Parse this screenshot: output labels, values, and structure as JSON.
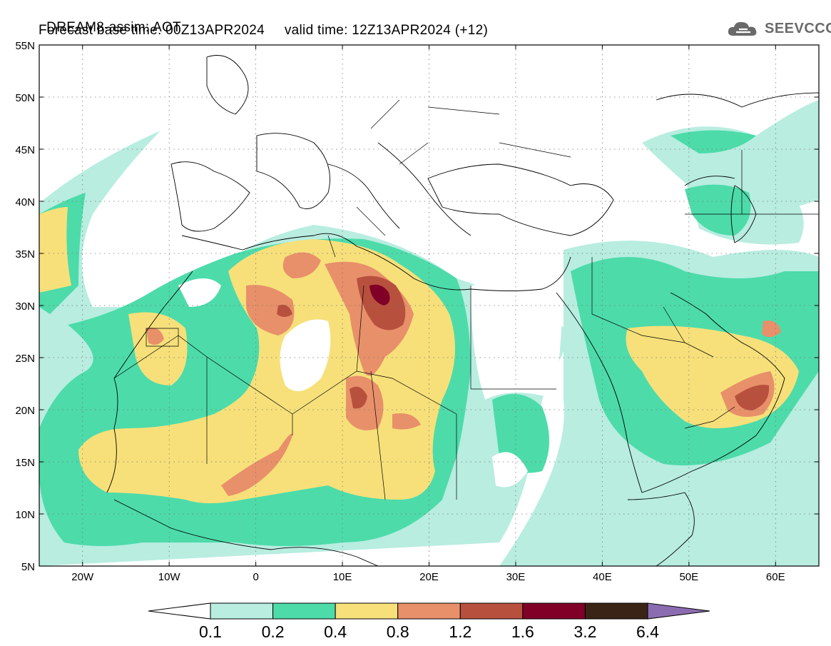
{
  "header": {
    "title": "DREAM8-assim: AOT",
    "base_time_label": "Forecast base time:",
    "base_time": "00Z13APR2024",
    "valid_time_label": "valid time:",
    "valid_time": "12Z13APR2024",
    "lead": "(+12)"
  },
  "logo": {
    "text": "SEEVCCC",
    "icon": "cloud-icon",
    "color": "#6a6a6a"
  },
  "map": {
    "lat_labels": [
      "55N",
      "50N",
      "45N",
      "40N",
      "35N",
      "30N",
      "25N",
      "20N",
      "15N",
      "10N",
      "5N"
    ],
    "lon_labels": [
      "20W",
      "10W",
      "0",
      "10E",
      "20E",
      "30E",
      "40E",
      "50E",
      "60E"
    ],
    "lat_range": [
      5,
      55
    ],
    "lon_range": [
      -25,
      65
    ],
    "grid": "dotted"
  },
  "colorbar": {
    "labels": [
      "0.1",
      "0.2",
      "0.4",
      "0.8",
      "1.2",
      "1.6",
      "3.2",
      "6.4"
    ],
    "colors": [
      "#ffffff",
      "#b8ede0",
      "#4ddbaa",
      "#f7e07a",
      "#e8906a",
      "#b8503e",
      "#800028",
      "#3a2416",
      "#8c6cb0"
    ]
  }
}
